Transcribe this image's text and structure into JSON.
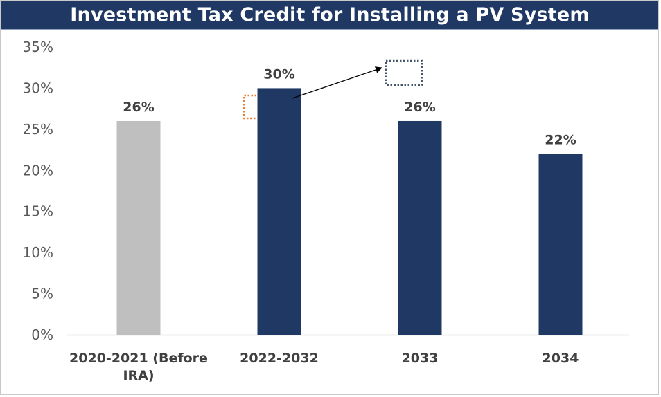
{
  "chart_data": {
    "type": "bar",
    "title": "Investment Tax Credit for Installing a PV System",
    "categories": [
      [
        "2020-2021 (Before",
        "IRA)"
      ],
      [
        "2022-2032"
      ],
      [
        "2033"
      ],
      [
        "2034"
      ]
    ],
    "values": [
      26,
      30,
      26,
      22
    ],
    "data_labels": [
      "26%",
      "30%",
      "26%",
      "22%"
    ],
    "bar_colors": [
      "#bfbfbf",
      "#1f3864",
      "#1f3864",
      "#1f3864"
    ],
    "ylim": [
      0,
      35
    ],
    "yticks": [
      0,
      5,
      10,
      15,
      20,
      25,
      30,
      35
    ],
    "ytick_labels": [
      "0%",
      "5%",
      "10%",
      "15%",
      "20%",
      "25%",
      "30%",
      "35%"
    ],
    "xlabel": "",
    "ylabel": "",
    "grid": false,
    "legend": "none",
    "annotations": {
      "arrow": "from top of 2022-2032 bar to dotted box",
      "dotted_box_colors": [
        "#ed7d31",
        "#44546a"
      ]
    }
  }
}
